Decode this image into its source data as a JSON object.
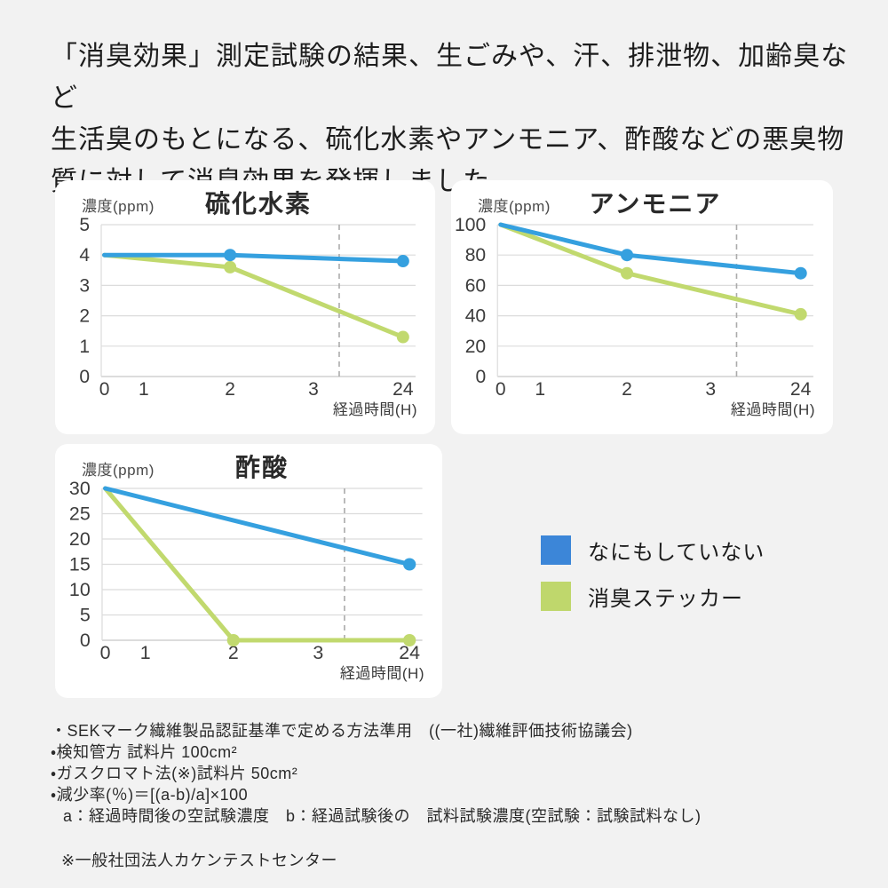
{
  "colors": {
    "background": "#F2F2F2",
    "panel": "#FFFFFF",
    "series_blue": "#35A0DF",
    "series_green": "#C1D96E",
    "legend_blue": "#3C86D8",
    "legend_green": "#BFD76C",
    "grid": "#DCDCDC",
    "axis_bottom": "#C7C7C7",
    "axis_break_dash": "#ABABAB",
    "text": "#1D1D1D"
  },
  "header": {
    "lines": [
      "「消臭効果」測定試験の結果、生ごみや、汗、排泄物、加齢臭など",
      "生活臭のもとになる、硫化水素やアンモニア、酢酸などの悪臭物",
      "質に対して消臭効果を発揮しました。"
    ]
  },
  "chart_data": [
    {
      "type": "line",
      "title": "硫化水素",
      "ylabel": "濃度(ppm)",
      "xlabel": "経過時間(H)",
      "x": [
        0,
        1,
        2,
        3,
        24
      ],
      "x_axis_break_between": [
        3,
        24
      ],
      "yticks": [
        0,
        1,
        2,
        3,
        4,
        5
      ],
      "ylim": [
        0,
        5
      ],
      "grid": true,
      "series": [
        {
          "name": "なにもしていない",
          "color": "#35A0DF",
          "points": [
            [
              0,
              4
            ],
            [
              2,
              4
            ],
            [
              24,
              3.8
            ]
          ],
          "markers": [
            [
              2,
              4
            ],
            [
              24,
              3.8
            ]
          ]
        },
        {
          "name": "消臭ステッカー",
          "color": "#C1D96E",
          "points": [
            [
              0,
              4
            ],
            [
              2,
              3.6
            ],
            [
              24,
              1.3
            ]
          ],
          "markers": [
            [
              2,
              3.6
            ],
            [
              24,
              1.3
            ]
          ]
        }
      ]
    },
    {
      "type": "line",
      "title": "アンモニア",
      "ylabel": "濃度(ppm)",
      "xlabel": "経過時間(H)",
      "x": [
        0,
        1,
        2,
        3,
        24
      ],
      "x_axis_break_between": [
        3,
        24
      ],
      "yticks": [
        0,
        20,
        40,
        60,
        80,
        100
      ],
      "ylim": [
        0,
        100
      ],
      "grid": true,
      "series": [
        {
          "name": "なにもしていない",
          "color": "#35A0DF",
          "points": [
            [
              0,
              100
            ],
            [
              2,
              80
            ],
            [
              24,
              68
            ]
          ],
          "markers": [
            [
              2,
              80
            ],
            [
              24,
              68
            ]
          ]
        },
        {
          "name": "消臭ステッカー",
          "color": "#C1D96E",
          "points": [
            [
              0,
              100
            ],
            [
              2,
              68
            ],
            [
              24,
              41
            ]
          ],
          "markers": [
            [
              2,
              68
            ],
            [
              24,
              41
            ]
          ]
        }
      ]
    },
    {
      "type": "line",
      "title": "酢酸",
      "ylabel": "濃度(ppm)",
      "xlabel": "経過時間(H)",
      "x": [
        0,
        1,
        2,
        3,
        24
      ],
      "x_axis_break_between": [
        3,
        24
      ],
      "yticks": [
        0,
        5,
        10,
        15,
        20,
        25,
        30
      ],
      "ylim": [
        0,
        30
      ],
      "grid": true,
      "series": [
        {
          "name": "なにもしていない",
          "color": "#35A0DF",
          "points": [
            [
              0,
              30
            ],
            [
              24,
              15
            ]
          ],
          "markers": [
            [
              24,
              15
            ]
          ]
        },
        {
          "name": "消臭ステッカー",
          "color": "#C1D96E",
          "points": [
            [
              0,
              30
            ],
            [
              2,
              0
            ],
            [
              24,
              0
            ]
          ],
          "markers": [
            [
              2,
              0
            ],
            [
              24,
              0
            ]
          ]
        }
      ]
    }
  ],
  "legend": {
    "position": "right-of-third-chart",
    "items": [
      {
        "label": "なにもしていない",
        "color": "#3C86D8"
      },
      {
        "label": "消臭ステッカー",
        "color": "#BFD76C"
      }
    ]
  },
  "footnotes": {
    "items": [
      "・SEKマーク繊維製品認証基準で定める方法準用　((一社)繊維評価技術協議会)",
      "・検知管方 試料片 100cm²",
      "・ガスクロマト法(※)試料片 50cm²",
      "・減少率(％)＝[(a-b)/a]×100",
      "a：経過時間後の空試験濃度　b：経過試験後の　試料試験濃度(空試験：試験試料なし)"
    ],
    "note": "※一般社団法人カケンテストセンター"
  }
}
